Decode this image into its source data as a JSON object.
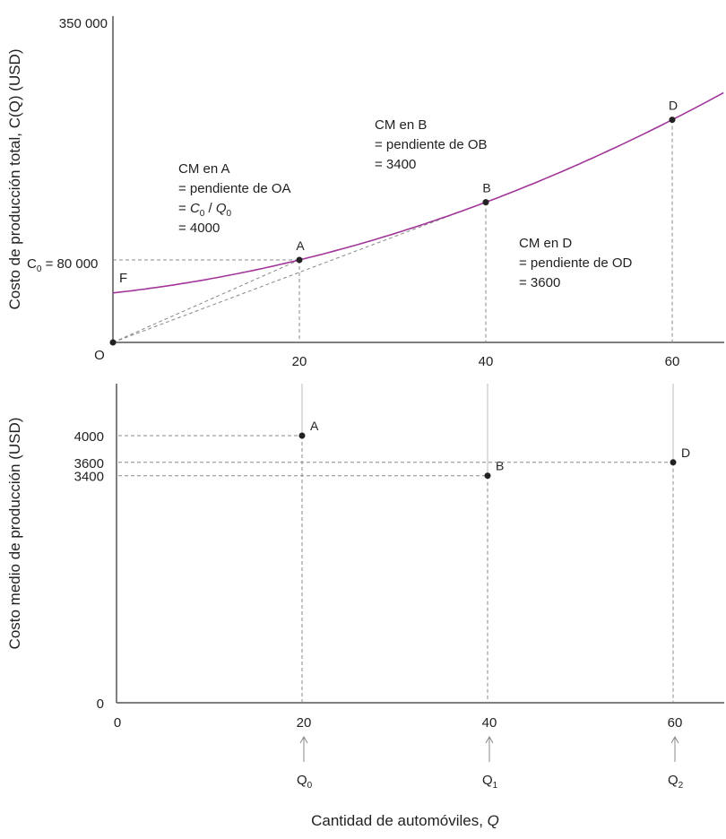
{
  "chart_data": [
    {
      "type": "line",
      "title": "",
      "xlabel": "",
      "ylabel": "Costo de producción total, C(Q) (USD)",
      "x_ticks": [
        "20",
        "40",
        "60"
      ],
      "y_ticks": [
        "350 000"
      ],
      "c0_label": "C",
      "c0_sub": "0",
      "c0_value": "= 80 000",
      "origin_label": "O",
      "fixed_cost_label": "F",
      "curve": {
        "name": "C(Q)",
        "color": "#a2359a",
        "fixed": 48000,
        "linear": 1000,
        "quadratic": 30,
        "q_range": [
          0,
          65.6
        ]
      },
      "points": [
        {
          "label": "A",
          "q": 20,
          "c": 80000
        },
        {
          "label": "B",
          "q": 40,
          "c": 136000
        },
        {
          "label": "D",
          "q": 60,
          "c": 216000
        }
      ],
      "annotations": {
        "A": [
          "CM en A",
          "= pendiente de OA",
          "= 4000"
        ],
        "A_formula": {
          "c": "C",
          "c_sub": "0",
          "sep": " / ",
          "q": "Q",
          "q_sub": "0",
          "eq": "= "
        },
        "B": [
          "CM en B",
          "= pendiente de OB",
          "= 3400"
        ],
        "D": [
          "CM en D",
          "= pendiente de OD",
          "= 3600"
        ]
      }
    },
    {
      "type": "scatter",
      "ylabel": "Costo medio de producción (USD)",
      "xlabel": "Cantidad de automóviles, Q",
      "xlabel_main": "Cantidad de automóviles, ",
      "xlabel_var": "Q",
      "x_ticks": [
        "0",
        "20",
        "40",
        "60"
      ],
      "y_ticks": [
        "0",
        "3400",
        "3600",
        "4000"
      ],
      "points": [
        {
          "label": "A",
          "q": 20,
          "ac": 4000
        },
        {
          "label": "B",
          "q": 40,
          "ac": 3400
        },
        {
          "label": "D",
          "q": 60,
          "ac": 3600
        }
      ],
      "q_markers": [
        {
          "label": "Q",
          "sub": "0",
          "q": 20
        },
        {
          "label": "Q",
          "sub": "1",
          "q": 40
        },
        {
          "label": "Q",
          "sub": "2",
          "q": 60
        }
      ]
    }
  ]
}
